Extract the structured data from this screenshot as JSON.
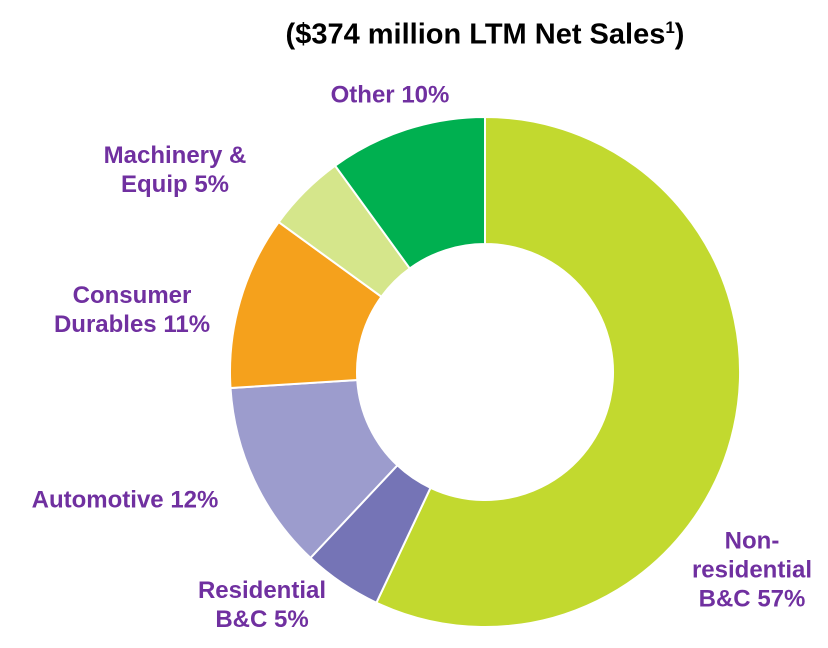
{
  "chart_data": {
    "type": "pie",
    "title_parts": [
      "($374 million LTM Net Sales",
      "1",
      ")"
    ],
    "categories": [
      "Non-residential B&C",
      "Residential B&C",
      "Automotive",
      "Consumer Durables",
      "Machinery & Equip",
      "Other"
    ],
    "values": [
      57,
      5,
      12,
      11,
      5,
      10
    ],
    "value_labels": [
      "57%",
      "5%",
      "12%",
      "11%",
      "5%",
      "10%"
    ],
    "colors": [
      "#c2d92f",
      "#7574b6",
      "#9c9ccd",
      "#f5a11c",
      "#d5e68b",
      "#00b050"
    ],
    "label_color": "#7030a0",
    "donut": true
  }
}
